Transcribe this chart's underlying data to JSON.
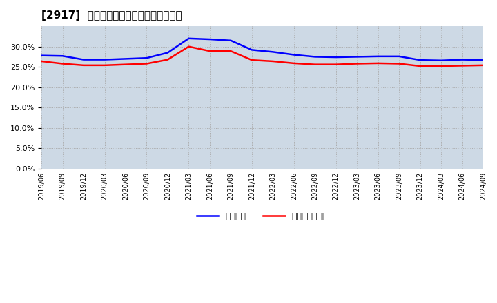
{
  "title": "[2917]  固定比率、固定長期適合率の推移",
  "background_color": "#ffffff",
  "plot_background_color": "#cdd9e5",
  "ylim": [
    0.0,
    0.35
  ],
  "yticks": [
    0.0,
    0.05,
    0.1,
    0.15,
    0.2,
    0.25,
    0.3
  ],
  "series": [
    {
      "name": "固定比率",
      "color": "#0000ff",
      "dates": [
        "2019-06-01",
        "2019-09-01",
        "2019-12-01",
        "2020-03-01",
        "2020-06-01",
        "2020-09-01",
        "2020-12-01",
        "2021-03-01",
        "2021-06-01",
        "2021-09-01",
        "2021-12-01",
        "2022-03-01",
        "2022-06-01",
        "2022-09-01",
        "2022-12-01",
        "2023-03-01",
        "2023-06-01",
        "2023-09-01",
        "2023-12-01",
        "2024-03-01",
        "2024-06-01",
        "2024-09-01"
      ],
      "values": [
        0.278,
        0.277,
        0.268,
        0.268,
        0.27,
        0.272,
        0.285,
        0.32,
        0.318,
        0.315,
        0.292,
        0.287,
        0.28,
        0.275,
        0.274,
        0.275,
        0.276,
        0.276,
        0.267,
        0.266,
        0.268,
        0.267
      ]
    },
    {
      "name": "固定長期適合率",
      "color": "#ff0000",
      "dates": [
        "2019-06-01",
        "2019-09-01",
        "2019-12-01",
        "2020-03-01",
        "2020-06-01",
        "2020-09-01",
        "2020-12-01",
        "2021-03-01",
        "2021-06-01",
        "2021-09-01",
        "2021-12-01",
        "2022-03-01",
        "2022-06-01",
        "2022-09-01",
        "2022-12-01",
        "2023-03-01",
        "2023-06-01",
        "2023-09-01",
        "2023-12-01",
        "2024-03-01",
        "2024-06-01",
        "2024-09-01"
      ],
      "values": [
        0.264,
        0.258,
        0.254,
        0.254,
        0.256,
        0.258,
        0.268,
        0.3,
        0.289,
        0.289,
        0.267,
        0.264,
        0.259,
        0.256,
        0.256,
        0.258,
        0.259,
        0.258,
        0.252,
        0.252,
        0.253,
        0.254
      ]
    }
  ],
  "xtick_labels": [
    "2019/06",
    "2019/09",
    "2019/12",
    "2020/03",
    "2020/06",
    "2020/09",
    "2020/12",
    "2021/03",
    "2021/06",
    "2021/09",
    "2021/12",
    "2022/03",
    "2022/06",
    "2022/09",
    "2022/12",
    "2023/03",
    "2023/06",
    "2023/09",
    "2023/12",
    "2024/03",
    "2024/06",
    "2024/09"
  ]
}
